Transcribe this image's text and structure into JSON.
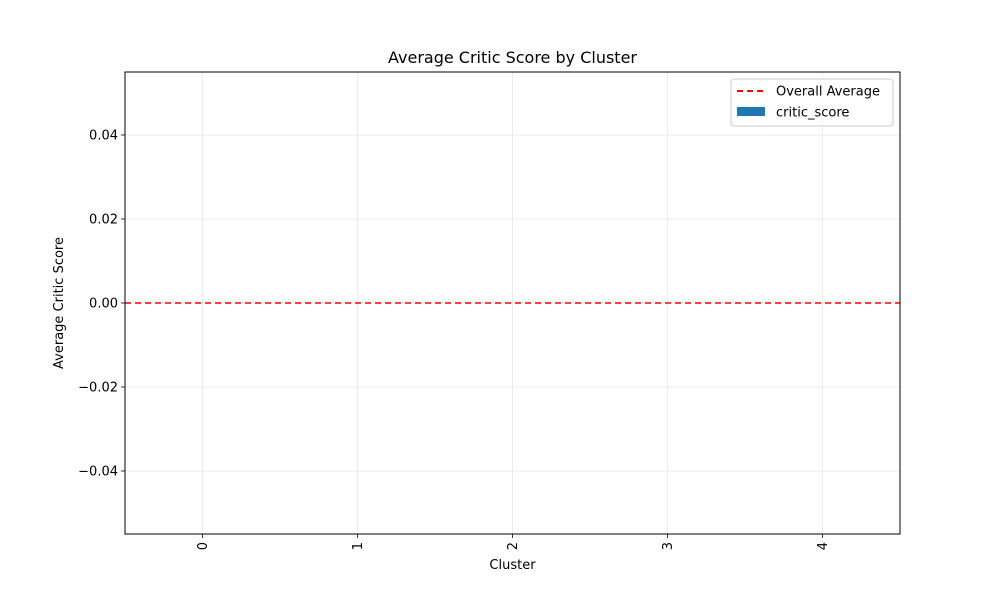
{
  "chart_data": {
    "type": "bar",
    "title": "Average Critic Score by Cluster",
    "xlabel": "Cluster",
    "ylabel": "Average Critic Score",
    "categories": [
      "0",
      "1",
      "2",
      "3",
      "4"
    ],
    "series": [
      {
        "name": "critic_score",
        "values": [
          0,
          0,
          0,
          0,
          0
        ],
        "color": "#1f77b4"
      }
    ],
    "reference_line": {
      "name": "Overall Average",
      "value": 0.0,
      "color": "#ff0000",
      "style": "dashed"
    },
    "ylim": [
      -0.055,
      0.055
    ],
    "yticks": [
      -0.04,
      -0.02,
      0.0,
      0.02,
      0.04
    ],
    "ytick_labels": [
      "−0.04",
      "−0.02",
      "0.00",
      "0.02",
      "0.04"
    ],
    "xlim": [
      -0.5,
      4.5
    ],
    "xtick_rotation": "vertical",
    "grid": true,
    "legend_position": "upper right"
  }
}
